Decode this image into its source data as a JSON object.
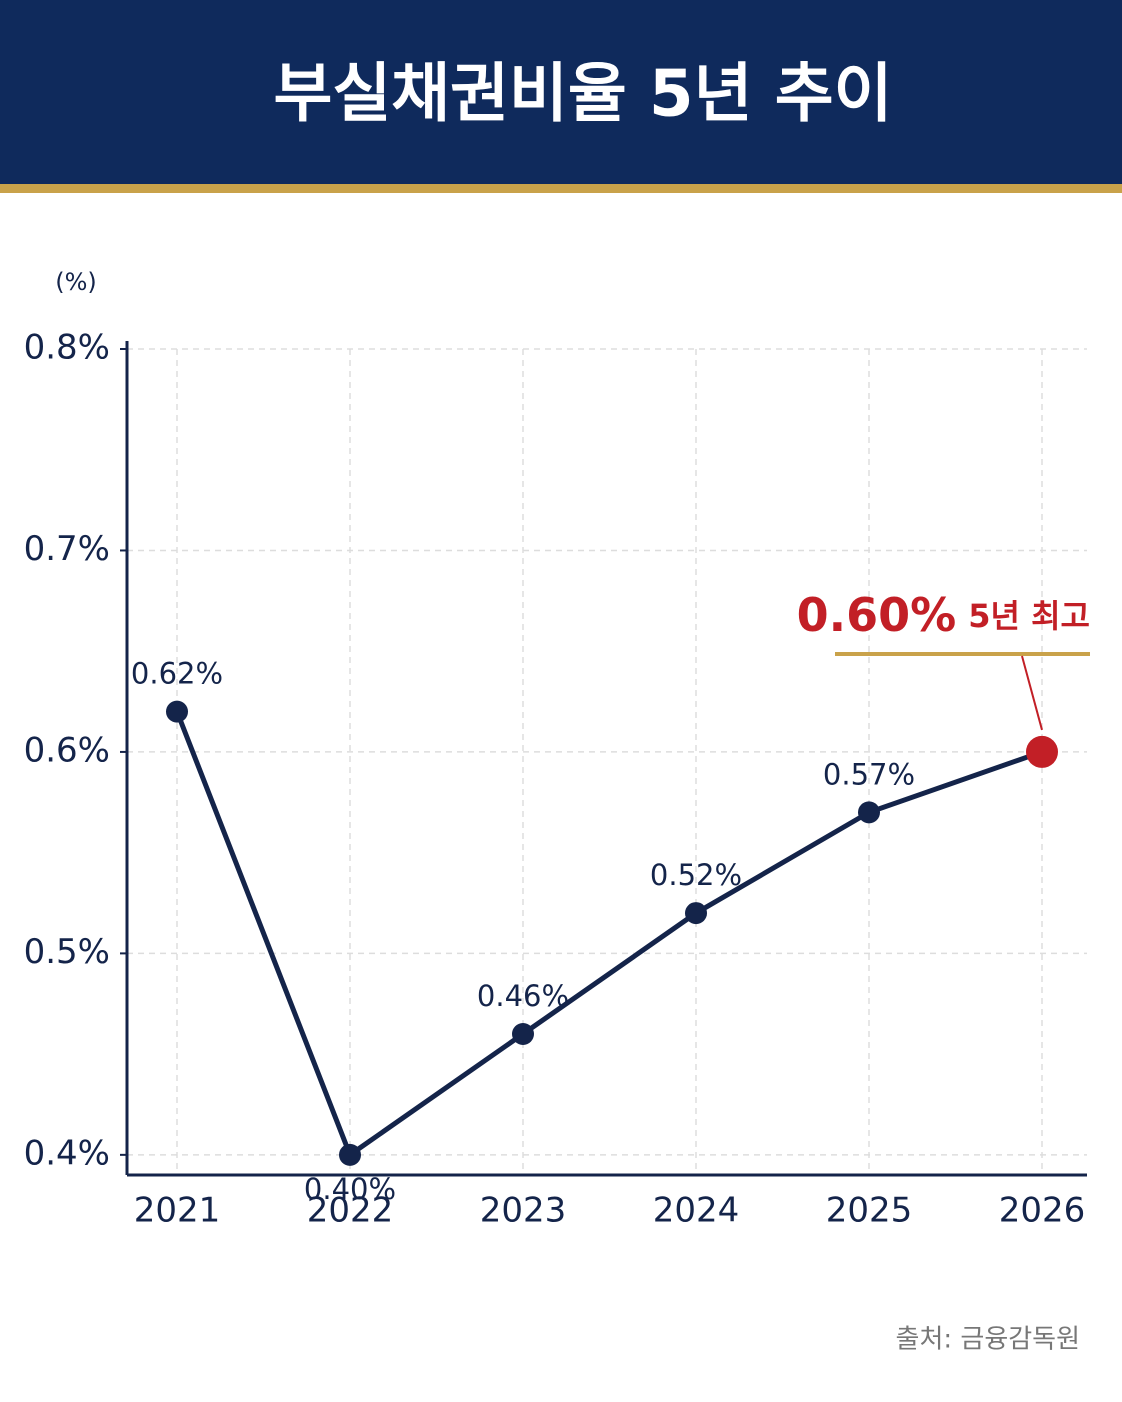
{
  "chart_data": {
    "type": "line",
    "title": "부실채권비율 5년 추이",
    "y_axis_label": "(%)",
    "categories": [
      "2021",
      "2022",
      "2023",
      "2024",
      "2025",
      "2026"
    ],
    "series": [
      {
        "color": "#14244a",
        "values": [
          0.62,
          0.4,
          0.46,
          0.52,
          0.57,
          0.6
        ],
        "value_labels": [
          "0.62%",
          "0.40%",
          "0.46%",
          "0.52%",
          "0.57%",
          null
        ]
      }
    ],
    "ylim": [
      0.39,
      0.8
    ],
    "yticks": [
      {
        "value": 0.4,
        "label": "0.4%"
      },
      {
        "value": 0.5,
        "label": "0.5%"
      },
      {
        "value": 0.6,
        "label": "0.6%"
      },
      {
        "value": 0.7,
        "label": "0.7%"
      },
      {
        "value": 0.8,
        "label": "0.8%"
      }
    ],
    "grid": true,
    "highlight": {
      "label": "0.60%",
      "text": "5년 최고",
      "color": "#c21f26"
    },
    "source": "출처: 금융감독원"
  }
}
